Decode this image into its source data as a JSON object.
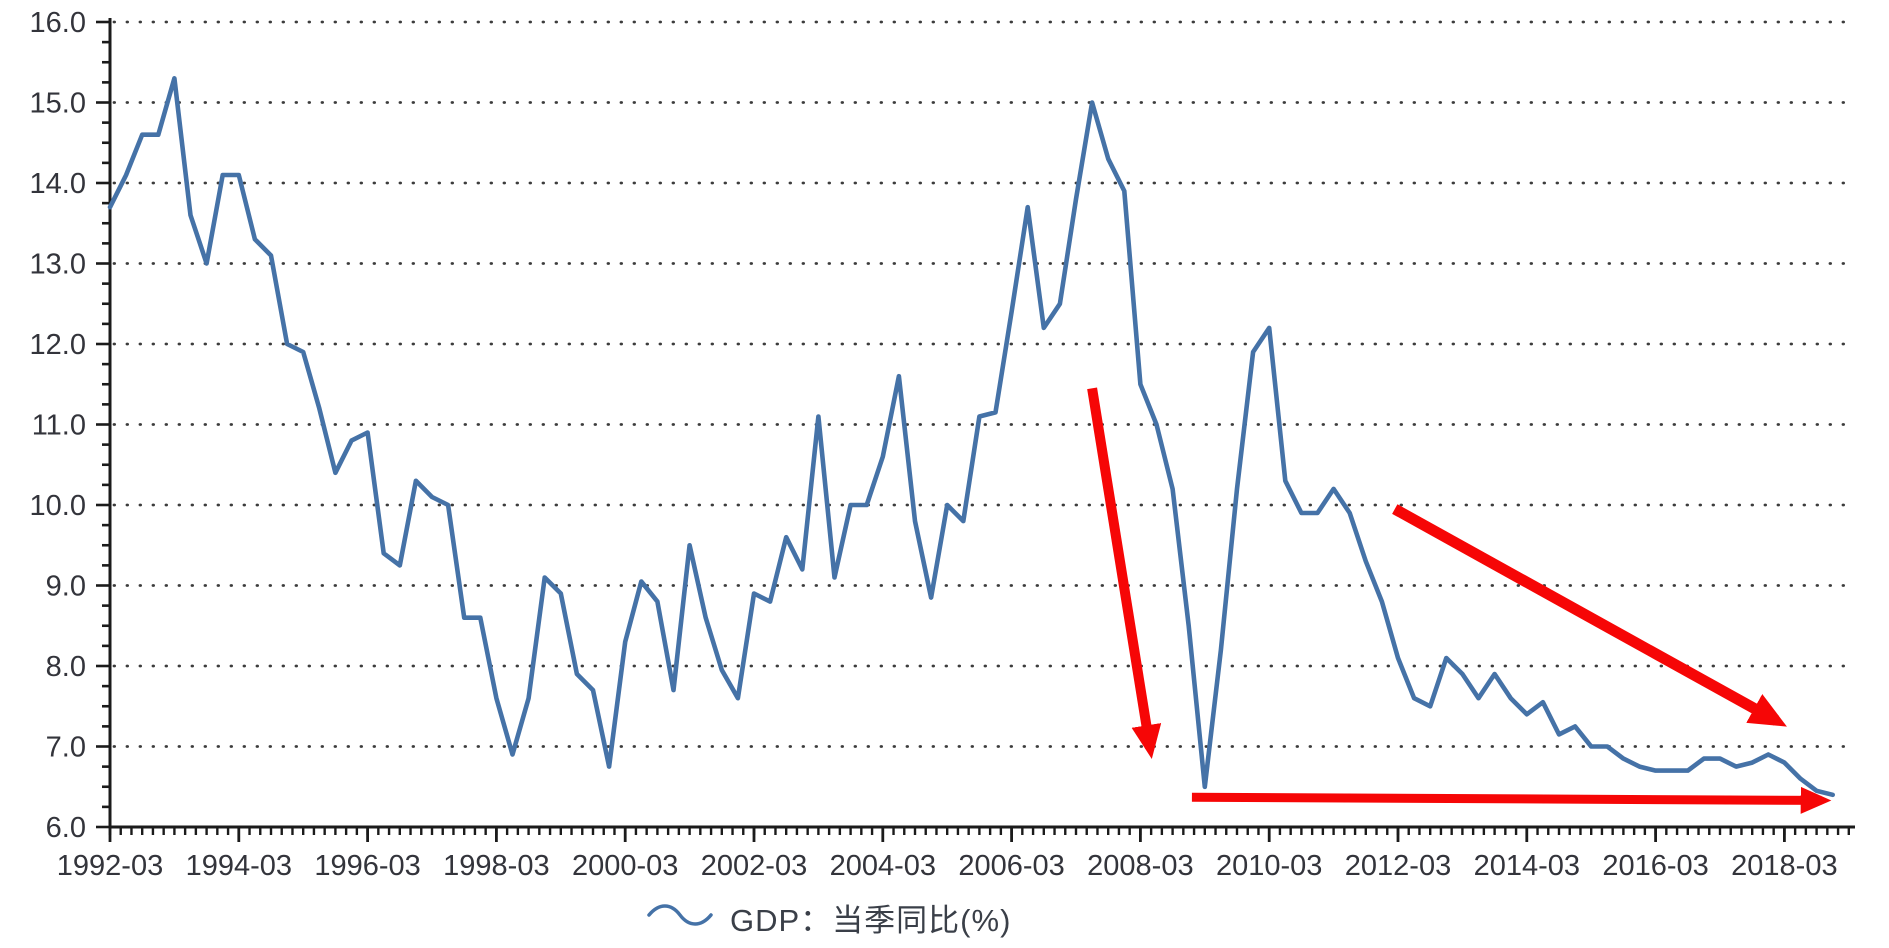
{
  "chart_data": {
    "type": "line",
    "title": "",
    "xlabel": "",
    "ylabel": "",
    "ylim": [
      6.0,
      16.0
    ],
    "y_tick_step": 1.0,
    "y_tick_labels": [
      "16.0",
      "15.0",
      "14.0",
      "13.0",
      "12.0",
      "11.0",
      "10.0",
      "9.0",
      "8.0",
      "7.0",
      "6.0"
    ],
    "x_tick_labels": [
      "1992-03",
      "1994-03",
      "1996-03",
      "1998-03",
      "2000-03",
      "2002-03",
      "2004-03",
      "2006-03",
      "2008-03",
      "2010-03",
      "2012-03",
      "2014-03",
      "2016-03",
      "2018-03"
    ],
    "quarters_per_x_tick": 8,
    "x_start_quarter": "1992-Q1",
    "x_end_quarter": "2018-Q4",
    "grid": "horizontal-dotted",
    "legend_position": "bottom-center",
    "series": [
      {
        "name": "GDP：当季同比(%)",
        "color": "#4572A7",
        "values": [
          13.7,
          14.1,
          14.6,
          14.6,
          15.3,
          13.6,
          13.0,
          14.1,
          14.1,
          13.3,
          13.1,
          12.0,
          11.9,
          11.2,
          10.4,
          10.8,
          10.9,
          9.4,
          9.25,
          10.3,
          10.1,
          10.0,
          8.6,
          8.6,
          7.6,
          6.9,
          7.6,
          9.1,
          8.9,
          7.9,
          7.7,
          6.75,
          8.3,
          9.05,
          8.8,
          7.7,
          9.5,
          8.6,
          7.95,
          7.6,
          8.9,
          8.8,
          9.6,
          9.2,
          11.1,
          9.1,
          10.0,
          10.0,
          10.6,
          11.6,
          9.8,
          8.85,
          10.0,
          9.8,
          11.1,
          11.15,
          12.4,
          13.7,
          12.2,
          12.5,
          13.8,
          15.0,
          14.3,
          13.9,
          11.5,
          11.0,
          10.2,
          8.5,
          6.5,
          8.2,
          10.2,
          11.9,
          12.2,
          10.3,
          9.9,
          9.9,
          10.2,
          9.9,
          9.3,
          8.8,
          8.1,
          7.6,
          7.5,
          8.1,
          7.9,
          7.6,
          7.9,
          7.6,
          7.4,
          7.55,
          7.15,
          7.25,
          7.0,
          7.0,
          6.85,
          6.75,
          6.7,
          6.7,
          6.7,
          6.85,
          6.85,
          6.75,
          6.8,
          6.9,
          6.8,
          6.6,
          6.45,
          6.4
        ]
      }
    ],
    "annotations": [
      {
        "type": "arrow",
        "name": "crisis-drop-arrow",
        "color": "#F60606",
        "width": 10,
        "from_q": 61.0,
        "from_v": 11.45,
        "to_q": 64.6,
        "to_v": 6.98
      },
      {
        "type": "arrow",
        "name": "slowdown-arrow",
        "color": "#F60606",
        "width": 11,
        "from_q": 79.8,
        "from_v": 9.95,
        "to_q": 103.5,
        "to_v": 7.32
      },
      {
        "type": "arrow",
        "name": "floor-arrow",
        "color": "#F60606",
        "width": 9,
        "from_q": 67.2,
        "from_v": 6.37,
        "to_q": 106.3,
        "to_v": 6.33
      }
    ]
  },
  "legend": {
    "label": "GDP：当季同比(%)"
  },
  "colors": {
    "line": "#4572A7",
    "arrow": "#F60606",
    "axis": "#1b1b1b",
    "grid_dot": "#3c3c3c",
    "tick_text": "#33343b"
  }
}
